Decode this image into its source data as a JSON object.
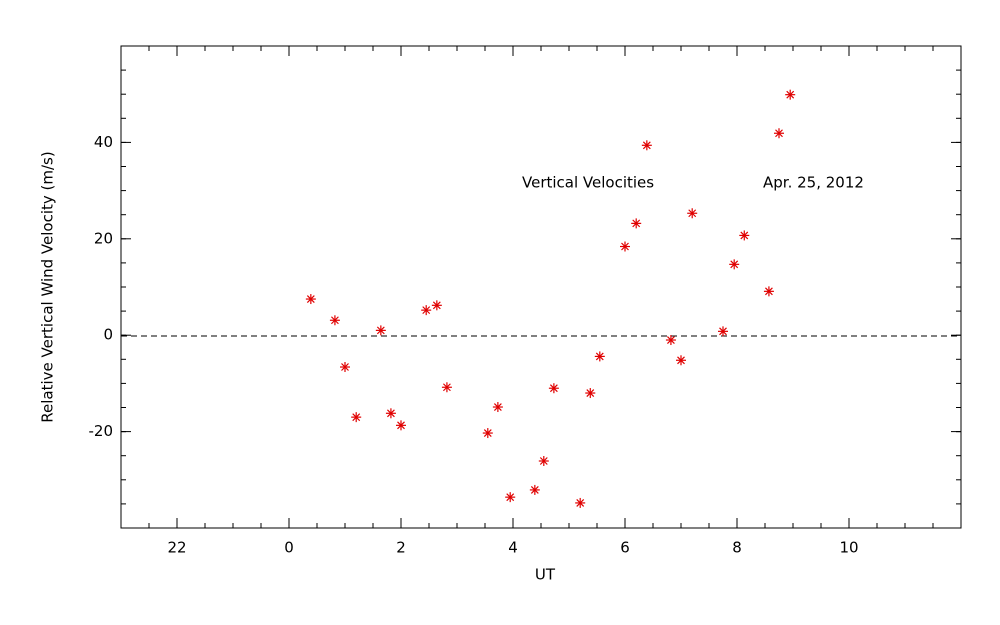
{
  "chart_data": {
    "type": "scatter",
    "xlabel": "UT",
    "ylabel": "Relative Vertical Wind Velocity (m/s)",
    "annotations": [
      "Vertical Velocities",
      "Apr. 25, 2012"
    ],
    "color": "#e00000",
    "x": [
      0.39,
      0.82,
      1.0,
      1.2,
      1.64,
      1.82,
      2.0,
      2.45,
      2.64,
      2.82,
      3.55,
      3.73,
      3.95,
      4.39,
      4.55,
      4.73,
      5.2,
      5.38,
      5.55,
      6.0,
      6.2,
      6.39,
      6.82,
      7.0,
      7.2,
      7.75,
      7.95,
      8.13,
      8.57,
      8.75,
      8.95
    ],
    "values": [
      7.5,
      3.1,
      -6.6,
      -17.0,
      1.0,
      -16.2,
      -18.7,
      5.2,
      6.2,
      -10.8,
      -20.3,
      -14.9,
      -33.6,
      -32.1,
      -26.1,
      -11.0,
      -34.8,
      -12.0,
      -4.4,
      18.4,
      23.2,
      39.4,
      -1.0,
      -5.2,
      25.3,
      0.8,
      14.7,
      20.7,
      9.1,
      41.9,
      49.9
    ],
    "xlim": [
      -3,
      12
    ],
    "xticks": [
      {
        "value": -2,
        "label": "22"
      },
      0,
      2,
      4,
      6,
      8,
      10
    ],
    "ylim": [
      -40,
      60
    ],
    "yticks": [
      -20,
      0,
      20,
      40
    ]
  }
}
